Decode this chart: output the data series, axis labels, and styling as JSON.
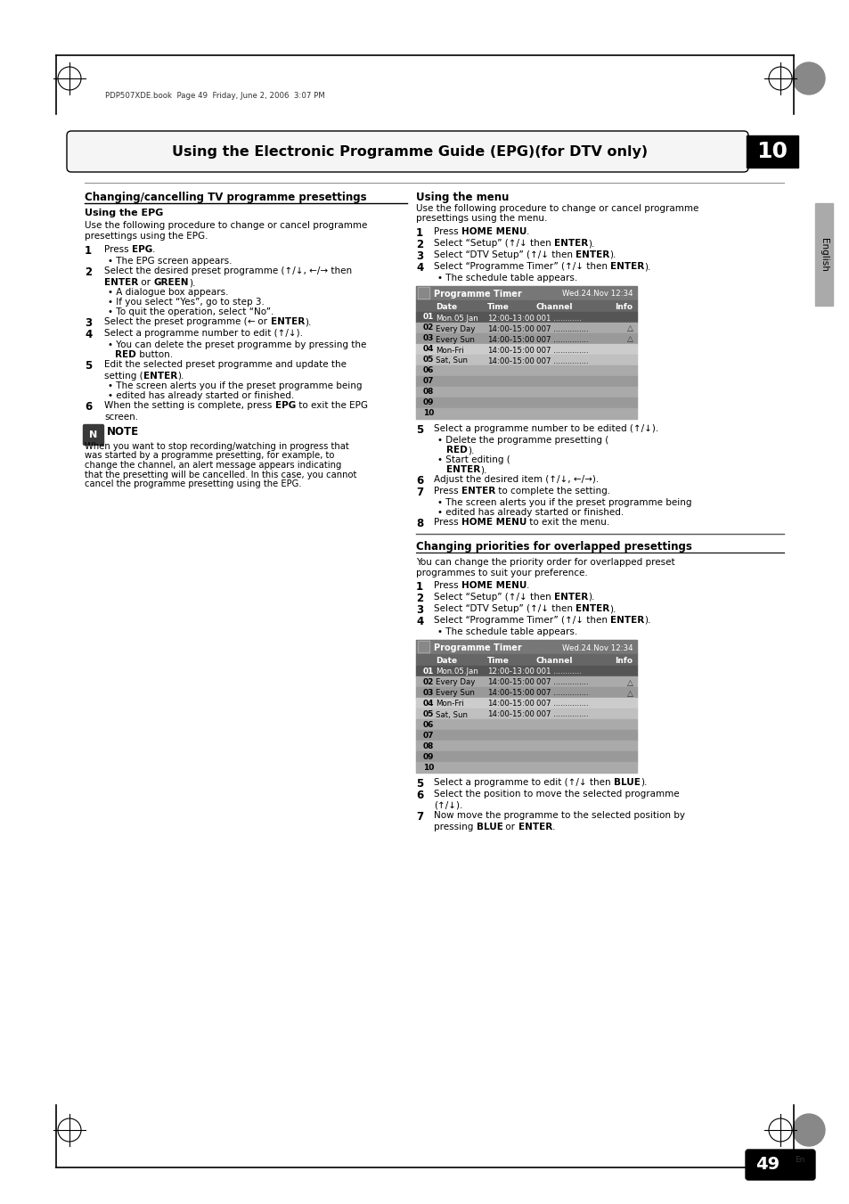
{
  "page_header": "PDP507XDE.book  Page 49  Friday, June 2, 2006  3:07 PM",
  "chapter_title": "Using the Electronic Programme Guide (EPG)(for DTV only)",
  "chapter_num": "10",
  "left_section_title": "Changing/cancelling TV programme presettings",
  "left_sub1_title": "Using the EPG",
  "left_sub1_intro": [
    "Use the following procedure to change or cancel programme",
    "presettings using the EPG."
  ],
  "left_steps": [
    {
      "num": "1",
      "parts": [
        {
          "t": "Press ",
          "b": false
        },
        {
          "t": "EPG",
          "b": true
        },
        {
          "t": ".",
          "b": false
        }
      ]
    },
    {
      "num": "",
      "sub": "The EPG screen appears."
    },
    {
      "num": "2",
      "parts": [
        {
          "t": "Select the desired preset programme (↑/↓, ←/→ then",
          "b": false
        }
      ],
      "parts2": [
        {
          "t": "ENTER",
          "b": true
        },
        {
          "t": " or ",
          "b": false
        },
        {
          "t": "GREEN",
          "b": true
        },
        {
          "t": ").",
          "b": false
        }
      ]
    },
    {
      "num": "",
      "sub": "A dialogue box appears."
    },
    {
      "num": "",
      "sub": "If you select “Yes”, go to step 3."
    },
    {
      "num": "",
      "sub": "To quit the operation, select “No”."
    },
    {
      "num": "3",
      "parts": [
        {
          "t": "Select the preset programme (",
          "b": false
        },
        {
          "t": "←",
          "b": false
        },
        {
          "t": " or ",
          "b": false
        },
        {
          "t": "ENTER",
          "b": true
        },
        {
          "t": ").",
          "b": false
        }
      ]
    },
    {
      "num": "4",
      "parts": [
        {
          "t": "Select a programme number to edit (↑/↓).",
          "b": false
        }
      ]
    },
    {
      "num": "",
      "sub": "You can delete the preset programme by pressing the"
    },
    {
      "num": "",
      "sub2": [
        {
          "t": "RED",
          "b": true
        },
        {
          "t": " button.",
          "b": false
        }
      ]
    },
    {
      "num": "5",
      "parts": [
        {
          "t": "Edit the selected preset programme and update the",
          "b": false
        }
      ],
      "parts2": [
        {
          "t": "setting (",
          "b": false
        },
        {
          "t": "ENTER",
          "b": true
        },
        {
          "t": ").",
          "b": false
        }
      ]
    },
    {
      "num": "",
      "sub": "The screen alerts you if the preset programme being"
    },
    {
      "num": "",
      "sub": "edited has already started or finished."
    },
    {
      "num": "6",
      "parts": [
        {
          "t": "When the setting is complete, press ",
          "b": false
        },
        {
          "t": "EPG",
          "b": true
        },
        {
          "t": " to exit the EPG",
          "b": false
        }
      ],
      "parts2": [
        {
          "t": "screen.",
          "b": false
        }
      ]
    }
  ],
  "note_text": [
    "When you want to stop recording/watching in progress that",
    "was started by a programme presetting, for example, to",
    "change the channel, an alert message appears indicating",
    "that the presetting will be cancelled. In this case, you cannot",
    "cancel the programme presetting using the EPG."
  ],
  "right_sub1_title": "Using the menu",
  "right_sub1_intro": [
    "Use the following procedure to change or cancel programme",
    "presettings using the menu."
  ],
  "right_steps_menu": [
    {
      "num": "1",
      "parts": [
        {
          "t": "Press ",
          "b": false
        },
        {
          "t": "HOME MENU",
          "b": true
        },
        {
          "t": ".",
          "b": false
        }
      ]
    },
    {
      "num": "2",
      "parts": [
        {
          "t": "Select “Setup” (↑/↓ then ",
          "b": false
        },
        {
          "t": "ENTER",
          "b": true
        },
        {
          "t": ").",
          "b": false
        }
      ]
    },
    {
      "num": "3",
      "parts": [
        {
          "t": "Select “DTV Setup” (↑/↓ then ",
          "b": false
        },
        {
          "t": "ENTER",
          "b": true
        },
        {
          "t": ").",
          "b": false
        }
      ]
    },
    {
      "num": "4",
      "parts": [
        {
          "t": "Select “Programme Timer” (↑/↓ then ",
          "b": false
        },
        {
          "t": "ENTER",
          "b": true
        },
        {
          "t": ").",
          "b": false
        }
      ]
    },
    {
      "num": "",
      "sub": "The schedule table appears."
    }
  ],
  "right_steps_menu2": [
    {
      "num": "5",
      "parts": [
        {
          "t": "Select a programme number to be edited (↑/↓).",
          "b": false
        }
      ]
    },
    {
      "num": "",
      "sub": "Delete the programme presetting (",
      "sub2": [
        {
          "t": "RED",
          "b": true
        },
        {
          "t": ").",
          "b": false
        }
      ]
    },
    {
      "num": "",
      "sub": "Start editing (",
      "sub2": [
        {
          "t": "ENTER",
          "b": true
        },
        {
          "t": ").",
          "b": false
        }
      ]
    },
    {
      "num": "6",
      "parts": [
        {
          "t": "Adjust the desired item (↑/↓, ←/→).",
          "b": false
        }
      ]
    },
    {
      "num": "7",
      "parts": [
        {
          "t": "Press ",
          "b": false
        },
        {
          "t": "ENTER",
          "b": true
        },
        {
          "t": " to complete the setting.",
          "b": false
        }
      ]
    },
    {
      "num": "",
      "sub": "The screen alerts you if the preset programme being"
    },
    {
      "num": "",
      "sub": "edited has already started or finished."
    },
    {
      "num": "8",
      "parts": [
        {
          "t": "Press ",
          "b": false
        },
        {
          "t": "HOME MENU",
          "b": true
        },
        {
          "t": " to exit the menu.",
          "b": false
        }
      ]
    }
  ],
  "right_section2_title": "Changing priorities for overlapped presettings",
  "right_section2_intro": [
    "You can change the priority order for overlapped preset",
    "programmes to suit your preference."
  ],
  "right_steps_prio": [
    {
      "num": "1",
      "parts": [
        {
          "t": "Press ",
          "b": false
        },
        {
          "t": "HOME MENU",
          "b": true
        },
        {
          "t": ".",
          "b": false
        }
      ]
    },
    {
      "num": "2",
      "parts": [
        {
          "t": "Select “Setup” (↑/↓ then ",
          "b": false
        },
        {
          "t": "ENTER",
          "b": true
        },
        {
          "t": ").",
          "b": false
        }
      ]
    },
    {
      "num": "3",
      "parts": [
        {
          "t": "Select “DTV Setup” (↑/↓ then ",
          "b": false
        },
        {
          "t": "ENTER",
          "b": true
        },
        {
          "t": ").",
          "b": false
        }
      ]
    },
    {
      "num": "4",
      "parts": [
        {
          "t": "Select “Programme Timer” (↑/↓ then ",
          "b": false
        },
        {
          "t": "ENTER",
          "b": true
        },
        {
          "t": ").",
          "b": false
        }
      ]
    },
    {
      "num": "",
      "sub": "The schedule table appears."
    }
  ],
  "right_steps_prio2": [
    {
      "num": "5",
      "parts": [
        {
          "t": "Select a programme to edit (↑/↓ then ",
          "b": false
        },
        {
          "t": "BLUE",
          "b": true
        },
        {
          "t": ").",
          "b": false
        }
      ]
    },
    {
      "num": "6",
      "parts": [
        {
          "t": "Select the position to move the selected programme",
          "b": false
        }
      ],
      "parts2": [
        {
          "t": "(↑/↓).",
          "b": false
        }
      ]
    },
    {
      "num": "7",
      "parts": [
        {
          "t": "Now move the programme to the selected position by",
          "b": false
        }
      ],
      "parts2": [
        {
          "t": "pressing ",
          "b": false
        },
        {
          "t": "BLUE",
          "b": true
        },
        {
          "t": " or ",
          "b": false
        },
        {
          "t": "ENTER",
          "b": true
        },
        {
          "t": ".",
          "b": false
        }
      ]
    }
  ],
  "table_header_cols": [
    "Date",
    "Time",
    "Channel",
    "Info"
  ],
  "table_title": "Programme Timer",
  "table_date": "Wed.24.Nov 12:34",
  "table_rows": [
    [
      "01",
      "Mon.05.Jan",
      "12:00-13:00",
      "001 ............",
      ""
    ],
    [
      "02",
      "Every Day",
      "14:00-15:00",
      "007 ...............",
      "△"
    ],
    [
      "03",
      "Every Sun",
      "14:00-15:00",
      "007 ...............",
      "△"
    ],
    [
      "04",
      "Mon-Fri",
      "14:00-15:00",
      "007 ...............",
      ""
    ],
    [
      "05",
      "Sat, Sun",
      "14:00-15:00",
      "007 ...............",
      ""
    ],
    [
      "06",
      "",
      "",
      "",
      ""
    ],
    [
      "07",
      "",
      "",
      "",
      ""
    ],
    [
      "08",
      "",
      "",
      "",
      ""
    ],
    [
      "09",
      "",
      "",
      "",
      ""
    ],
    [
      "10",
      "",
      "",
      "",
      ""
    ]
  ],
  "page_num": "49",
  "background_color": "#ffffff"
}
